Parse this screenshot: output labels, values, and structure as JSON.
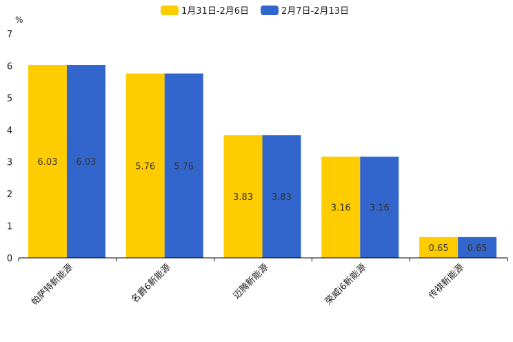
{
  "chart_data": {
    "type": "bar",
    "title": "",
    "ylabel": "%",
    "xlabel": "",
    "ylim": [
      0,
      7
    ],
    "yticks": [
      0,
      1,
      2,
      3,
      4,
      5,
      6,
      7
    ],
    "categories": [
      "帕萨特新能源",
      "名爵6新能源",
      "迈腾新能源",
      "荣威i6新能源",
      "传祺新能源"
    ],
    "series": [
      {
        "name": "1月31日-2月6日",
        "values": [
          6.03,
          5.76,
          3.83,
          3.16,
          0.65
        ],
        "color": "#FFCC00"
      },
      {
        "name": "2月7日-2月13日",
        "values": [
          6.03,
          5.76,
          3.83,
          3.16,
          0.65
        ],
        "color": "#3366CC"
      }
    ],
    "legend": "top-center",
    "grid": false
  }
}
